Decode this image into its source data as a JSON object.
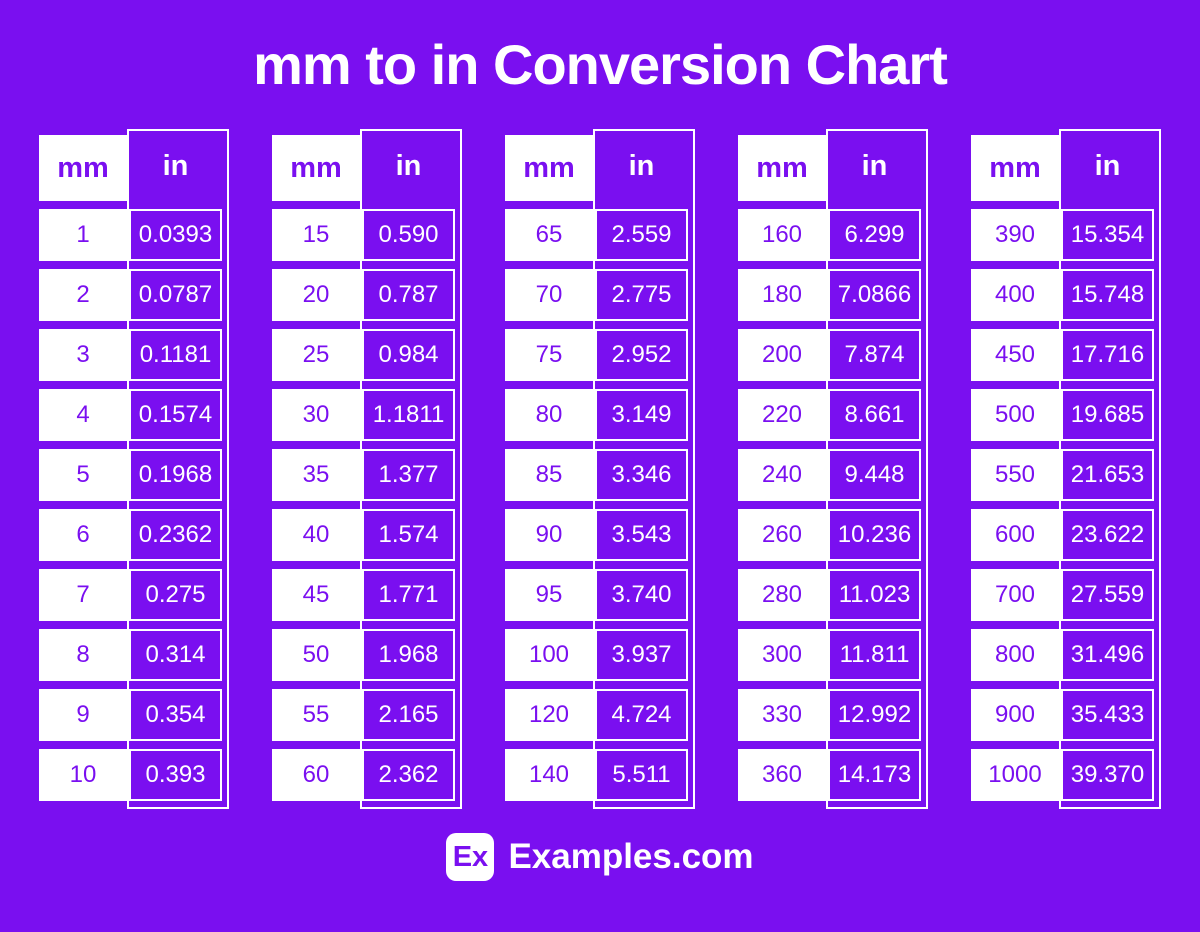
{
  "page": {
    "title": "mm to in Conversion Chart",
    "colors": {
      "background": "#7A0FF0",
      "cell_text_purple": "#7A0FF0",
      "white": "#FFFFFF"
    },
    "footer": {
      "logo_text": "Ex",
      "brand": "Examples.com"
    }
  },
  "chart_data": {
    "type": "table",
    "title": "mm to in Conversion Chart",
    "columns": [
      "mm",
      "in"
    ],
    "tables": [
      {
        "col_headers": [
          "mm",
          "in"
        ],
        "rows": [
          [
            "1",
            "0.0393"
          ],
          [
            "2",
            "0.0787"
          ],
          [
            "3",
            "0.1181"
          ],
          [
            "4",
            "0.1574"
          ],
          [
            "5",
            "0.1968"
          ],
          [
            "6",
            "0.2362"
          ],
          [
            "7",
            "0.275"
          ],
          [
            "8",
            "0.314"
          ],
          [
            "9",
            "0.354"
          ],
          [
            "10",
            "0.393"
          ]
        ]
      },
      {
        "col_headers": [
          "mm",
          "in"
        ],
        "rows": [
          [
            "15",
            "0.590"
          ],
          [
            "20",
            "0.787"
          ],
          [
            "25",
            "0.984"
          ],
          [
            "30",
            "1.1811"
          ],
          [
            "35",
            "1.377"
          ],
          [
            "40",
            "1.574"
          ],
          [
            "45",
            "1.771"
          ],
          [
            "50",
            "1.968"
          ],
          [
            "55",
            "2.165"
          ],
          [
            "60",
            "2.362"
          ]
        ]
      },
      {
        "col_headers": [
          "mm",
          "in"
        ],
        "rows": [
          [
            "65",
            "2.559"
          ],
          [
            "70",
            "2.775"
          ],
          [
            "75",
            "2.952"
          ],
          [
            "80",
            "3.149"
          ],
          [
            "85",
            "3.346"
          ],
          [
            "90",
            "3.543"
          ],
          [
            "95",
            "3.740"
          ],
          [
            "100",
            "3.937"
          ],
          [
            "120",
            "4.724"
          ],
          [
            "140",
            "5.511"
          ]
        ]
      },
      {
        "col_headers": [
          "mm",
          "in"
        ],
        "rows": [
          [
            "160",
            "6.299"
          ],
          [
            "180",
            "7.0866"
          ],
          [
            "200",
            "7.874"
          ],
          [
            "220",
            "8.661"
          ],
          [
            "240",
            "9.448"
          ],
          [
            "260",
            "10.236"
          ],
          [
            "280",
            "11.023"
          ],
          [
            "300",
            "11.811"
          ],
          [
            "330",
            "12.992"
          ],
          [
            "360",
            "14.173"
          ]
        ]
      },
      {
        "col_headers": [
          "mm",
          "in"
        ],
        "rows": [
          [
            "390",
            "15.354"
          ],
          [
            "400",
            "15.748"
          ],
          [
            "450",
            "17.716"
          ],
          [
            "500",
            "19.685"
          ],
          [
            "550",
            "21.653"
          ],
          [
            "600",
            "23.622"
          ],
          [
            "700",
            "27.559"
          ],
          [
            "800",
            "31.496"
          ],
          [
            "900",
            "35.433"
          ],
          [
            "1000",
            "39.370"
          ]
        ]
      }
    ]
  }
}
